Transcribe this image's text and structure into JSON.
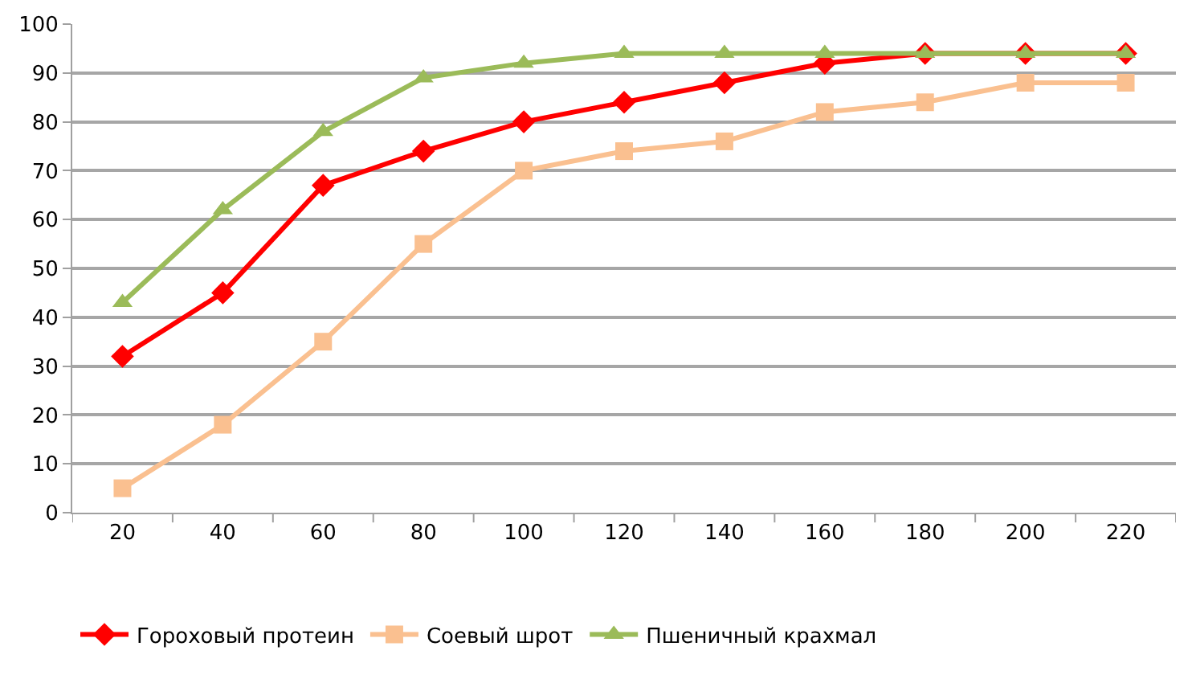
{
  "chart_data": {
    "type": "line",
    "categories": [
      "20",
      "40",
      "60",
      "80",
      "100",
      "120",
      "140",
      "160",
      "180",
      "200",
      "220"
    ],
    "series": [
      {
        "name": "Гороховый протеин",
        "color": "#ff0000",
        "marker": "diamond",
        "values": [
          32,
          45,
          67,
          74,
          80,
          84,
          88,
          92,
          94,
          94,
          94
        ]
      },
      {
        "name": "Соевый шрот",
        "color": "#fac090",
        "marker": "square",
        "values": [
          5,
          18,
          35,
          55,
          70,
          74,
          76,
          82,
          84,
          88,
          88
        ]
      },
      {
        "name": "Пшеничный крахмал",
        "color": "#9bbb59",
        "marker": "triangle",
        "values": [
          43,
          62,
          78,
          89,
          92,
          94,
          94,
          94,
          94,
          94,
          94
        ]
      }
    ],
    "ylim": [
      0,
      100
    ],
    "yticks": [
      0,
      10,
      20,
      30,
      40,
      50,
      60,
      70,
      80,
      90,
      100
    ],
    "grid": "y",
    "legend": "bottom",
    "line_style": "solid"
  }
}
